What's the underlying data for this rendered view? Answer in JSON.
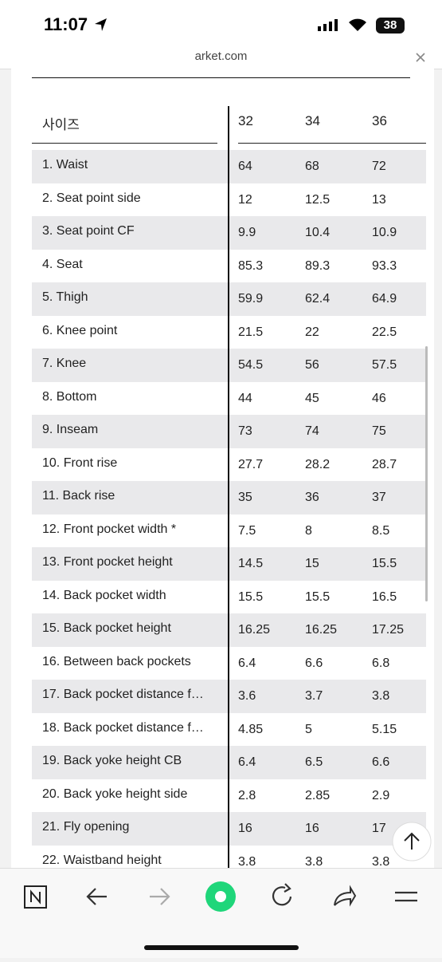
{
  "status_bar": {
    "time": "11:07",
    "battery": "38"
  },
  "address_bar": {
    "url": "arket.com"
  },
  "table": {
    "header": [
      "사이즈",
      "32",
      "34",
      "36"
    ],
    "rows": [
      [
        "1. Waist",
        "64",
        "68",
        "72"
      ],
      [
        "2. Seat point side",
        "12",
        "12.5",
        "13"
      ],
      [
        "3. Seat point CF",
        "9.9",
        "10.4",
        "10.9"
      ],
      [
        "4. Seat",
        "85.3",
        "89.3",
        "93.3"
      ],
      [
        "5. Thigh",
        "59.9",
        "62.4",
        "64.9"
      ],
      [
        "6. Knee point",
        "21.5",
        "22",
        "22.5"
      ],
      [
        "7. Knee",
        "54.5",
        "56",
        "57.5"
      ],
      [
        "8. Bottom",
        "44",
        "45",
        "46"
      ],
      [
        "9. Inseam",
        "73",
        "74",
        "75"
      ],
      [
        "10. Front rise",
        "27.7",
        "28.2",
        "28.7"
      ],
      [
        "11. Back rise",
        "35",
        "36",
        "37"
      ],
      [
        "12. Front pocket width *",
        "7.5",
        "8",
        "8.5"
      ],
      [
        "13. Front pocket height",
        "14.5",
        "15",
        "15.5"
      ],
      [
        "14. Back pocket width",
        "15.5",
        "15.5",
        "16.5"
      ],
      [
        "15. Back pocket height",
        "16.25",
        "16.25",
        "17.25"
      ],
      [
        "16. Between back pockets",
        "6.4",
        "6.6",
        "6.8"
      ],
      [
        "17. Back pocket distance f…",
        "3.6",
        "3.7",
        "3.8"
      ],
      [
        "18. Back pocket distance f…",
        "4.85",
        "5",
        "5.15"
      ],
      [
        "19. Back yoke height CB",
        "6.4",
        "6.5",
        "6.6"
      ],
      [
        "20. Back yoke height side",
        "2.8",
        "2.85",
        "2.9"
      ],
      [
        "21. Fly opening",
        "16",
        "16",
        "17"
      ],
      [
        "22. Waistband height",
        "3.8",
        "3.8",
        "3.8"
      ]
    ]
  }
}
